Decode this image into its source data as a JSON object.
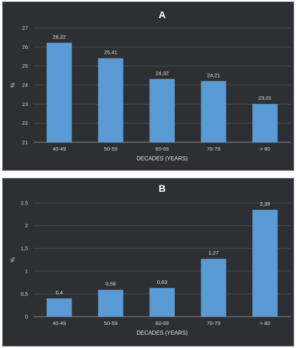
{
  "chart_data": [
    {
      "type": "bar",
      "title": "A",
      "categories": [
        "40-49",
        "50-59",
        "60-69",
        "70-79",
        "> 80"
      ],
      "values": [
        26.22,
        25.41,
        24.32,
        24.21,
        23.01
      ],
      "data_labels": [
        "26,22",
        "25,41",
        "24,32",
        "24,21",
        "23,01"
      ],
      "xlabel": "DECADES (YEARS)",
      "ylabel": "%",
      "ylim": [
        21,
        27
      ],
      "y_ticks": [
        21,
        22,
        23,
        24,
        25,
        26,
        27
      ],
      "y_tick_labels": [
        "21",
        "22",
        "23",
        "24",
        "25",
        "26",
        "27"
      ],
      "grid": true,
      "bar_color": "#5b9bd5",
      "background": "#2d2f32"
    },
    {
      "type": "bar",
      "title": "B",
      "categories": [
        "40-49",
        "50-59",
        "60-69",
        "70-79",
        "> 80"
      ],
      "values": [
        0.4,
        0.59,
        0.63,
        1.27,
        2.35
      ],
      "data_labels": [
        "0,4",
        "0,59",
        "0,63",
        "1,27",
        "2,35"
      ],
      "xlabel": "DECADES (YEARS)",
      "ylabel": "%",
      "ylim": [
        0,
        2.5
      ],
      "y_ticks": [
        0,
        0.5,
        1,
        1.5,
        2,
        2.5
      ],
      "y_tick_labels": [
        "0",
        "0,5",
        "1",
        "1,5",
        "2",
        "2,5"
      ],
      "grid": true,
      "bar_color": "#5b9bd5",
      "background": "#2d2f32"
    }
  ]
}
